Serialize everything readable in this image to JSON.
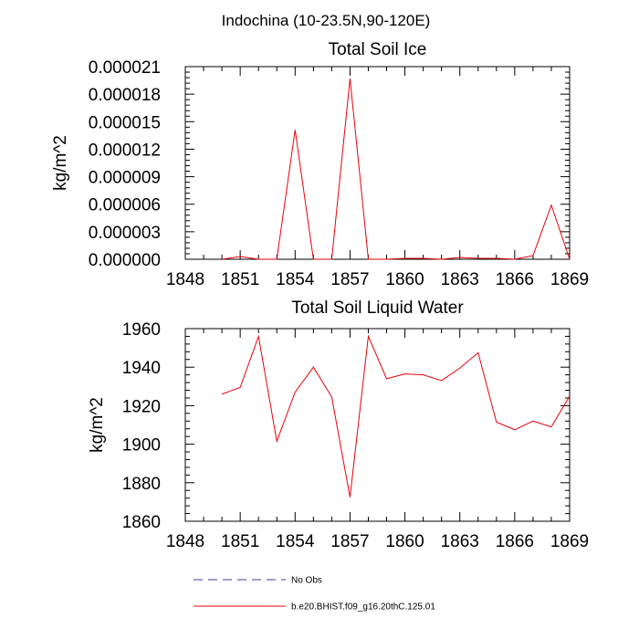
{
  "figure_title": "Indochina (10-23.5N,90-120E)",
  "legend": [
    {
      "label": "No Obs",
      "color": "#3b3b9a",
      "dash": "dashed"
    },
    {
      "label": "b.e20.BHIST.f09_g16.20thC.125.01",
      "color": "#e8000b",
      "dash": "solid"
    }
  ],
  "chart_data": [
    {
      "type": "line",
      "title": "Total Soil Ice",
      "xlabel": "",
      "ylabel": "kg/m^2",
      "xlim": [
        1848,
        1869
      ],
      "ylim": [
        0,
        2.1e-05
      ],
      "x_ticks": [
        "1848",
        "1851",
        "1854",
        "1857",
        "1860",
        "1863",
        "1866",
        "1869"
      ],
      "y_ticks": [
        "0.000000",
        "0.000003",
        "0.000006",
        "0.000009",
        "0.000012",
        "0.000015",
        "0.000018",
        "0.000021"
      ],
      "grid": false,
      "series": [
        {
          "name": "b.e20.BHIST.f09_g16.20thC.125.01",
          "color": "#e8000b",
          "x": [
            1850,
            1851,
            1852,
            1853,
            1854,
            1855,
            1856,
            1857,
            1858,
            1859,
            1860,
            1861,
            1862,
            1863,
            1864,
            1865,
            1866,
            1867,
            1868,
            1869
          ],
          "values": [
            0.0,
            3e-07,
            0.0,
            0.0,
            1.41e-05,
            0.0,
            0.0,
            1.97e-05,
            0.0,
            0.0,
            1e-07,
            1e-07,
            0.0,
            2e-07,
            1e-07,
            1e-07,
            0.0,
            4e-07,
            5.9e-06,
            0.0
          ]
        }
      ]
    },
    {
      "type": "line",
      "title": "Total Soil Liquid Water",
      "xlabel": "",
      "ylabel": "kg/m^2",
      "xlim": [
        1848,
        1869
      ],
      "ylim": [
        1860,
        1960
      ],
      "x_ticks": [
        "1848",
        "1851",
        "1854",
        "1857",
        "1860",
        "1863",
        "1866",
        "1869"
      ],
      "y_ticks": [
        "1860",
        "1880",
        "1900",
        "1920",
        "1940",
        "1960"
      ],
      "grid": false,
      "series": [
        {
          "name": "b.e20.BHIST.f09_g16.20thC.125.01",
          "color": "#e8000b",
          "x": [
            1850,
            1851,
            1852,
            1853,
            1854,
            1855,
            1856,
            1857,
            1858,
            1859,
            1860,
            1861,
            1862,
            1863,
            1864,
            1865,
            1866,
            1867,
            1868,
            1869
          ],
          "values": [
            1926,
            1929.5,
            1956,
            1901.5,
            1927,
            1940,
            1924.5,
            1872.5,
            1956,
            1934,
            1936.5,
            1936,
            1933,
            1939.5,
            1947.5,
            1911.5,
            1907.5,
            1912,
            1909,
            1925
          ]
        }
      ]
    }
  ]
}
